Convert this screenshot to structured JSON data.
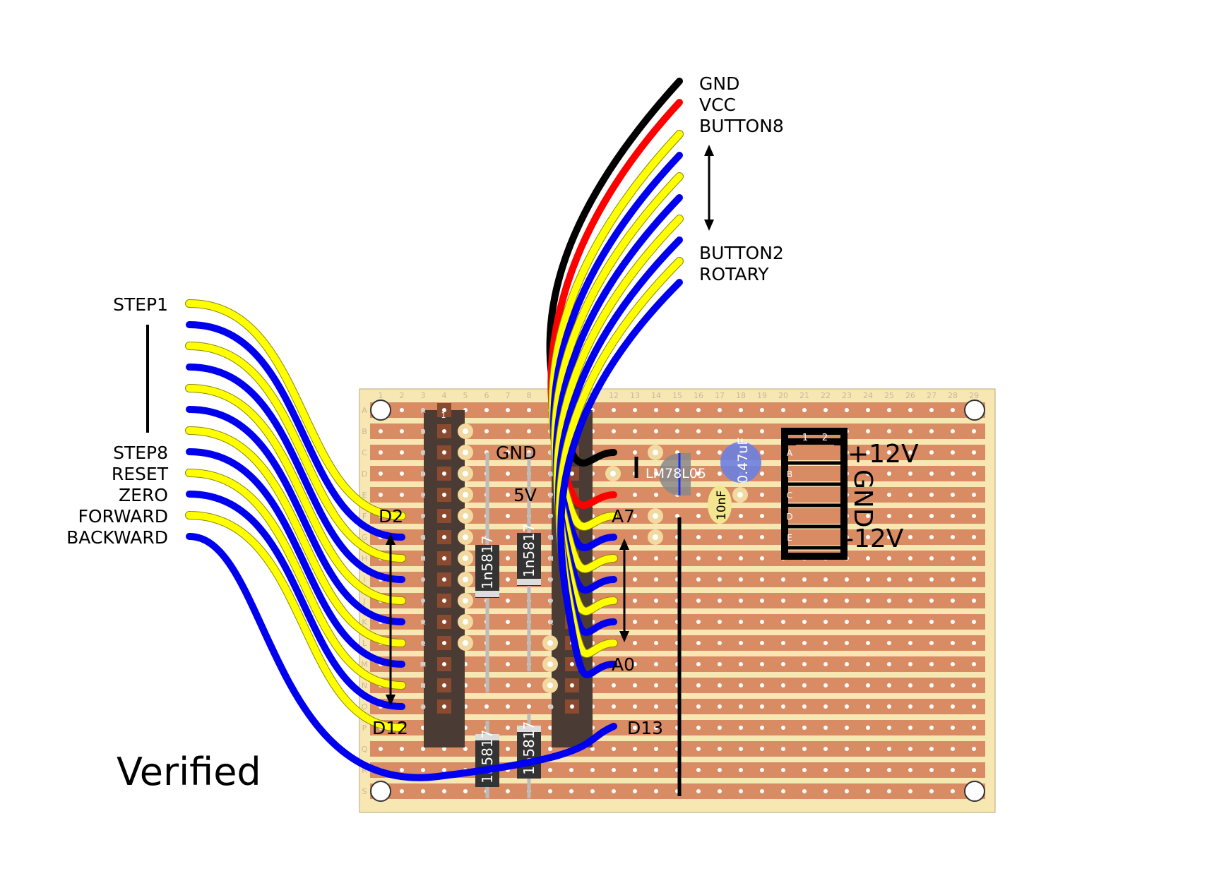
{
  "status_text": "Verified",
  "colors": {
    "board": "#f7e7b3",
    "strip": "#d98c63",
    "hole": "#ffffff",
    "wire_yellow": "#ffff00",
    "wire_blue": "#0000ee",
    "wire_red": "#ff0000",
    "wire_black": "#000000",
    "header_body": "#4a3c34",
    "capacitor_blue": "#6b7fe0",
    "capacitor_ceramic": "#f3e690",
    "diode_body": "#333333"
  },
  "top_connector": {
    "labels": {
      "gnd": "GND",
      "vcc": "VCC",
      "button8": "BUTTON8",
      "button2": "BUTTON2",
      "rotary": "ROTARY"
    },
    "wire_colors": [
      "black",
      "red",
      "yellow",
      "blue",
      "yellow",
      "blue",
      "yellow",
      "blue",
      "yellow",
      "blue"
    ]
  },
  "left_connector": {
    "labels": {
      "step1": "STEP1",
      "step8": "STEP8",
      "reset": "RESET",
      "zero": "ZERO",
      "forward": "FORWARD",
      "backward": "BACKWARD"
    },
    "wire_colors": [
      "yellow",
      "blue",
      "yellow",
      "blue",
      "yellow",
      "blue",
      "yellow",
      "blue",
      "yellow",
      "blue",
      "yellow",
      "blue"
    ]
  },
  "board_labels": {
    "gnd": "GND",
    "five_v": "5V",
    "a7": "A7",
    "a0": "A0",
    "d2": "D2",
    "d12": "D12",
    "d13": "D13"
  },
  "power_header": {
    "plus12": "+12V",
    "gnd": "GND",
    "minus12": "-12V",
    "pin_cols": [
      "1",
      "2"
    ],
    "pin_rows": [
      "A",
      "B",
      "C",
      "D",
      "E"
    ]
  },
  "components": {
    "regulator": "LM78L05",
    "cap_electrolytic": "0.47uF",
    "cap_ceramic": "10nF",
    "diode_1": "1n5817",
    "diode_2": "1n5817",
    "diode_3": "1n5817",
    "diode_4": "1n5817",
    "header_pin1": "1"
  },
  "board_columns": [
    "1",
    "2",
    "3",
    "4",
    "5",
    "6",
    "7",
    "8",
    "9",
    "10",
    "11",
    "12",
    "13",
    "14",
    "15",
    "16",
    "17",
    "18",
    "19",
    "20",
    "21",
    "22",
    "23",
    "24",
    "25",
    "26",
    "27",
    "28",
    "29"
  ],
  "board_rows": [
    "A",
    "B",
    "C",
    "D",
    "E",
    "F",
    "G",
    "H",
    "I",
    "J",
    "K",
    "L",
    "M",
    "N",
    "O",
    "P",
    "Q",
    "R",
    "S"
  ],
  "header_rows": [
    "A",
    "B",
    "C",
    "D",
    "E",
    "F",
    "G",
    "H",
    "I",
    "J",
    "K",
    "L",
    "M",
    "N",
    "O"
  ]
}
